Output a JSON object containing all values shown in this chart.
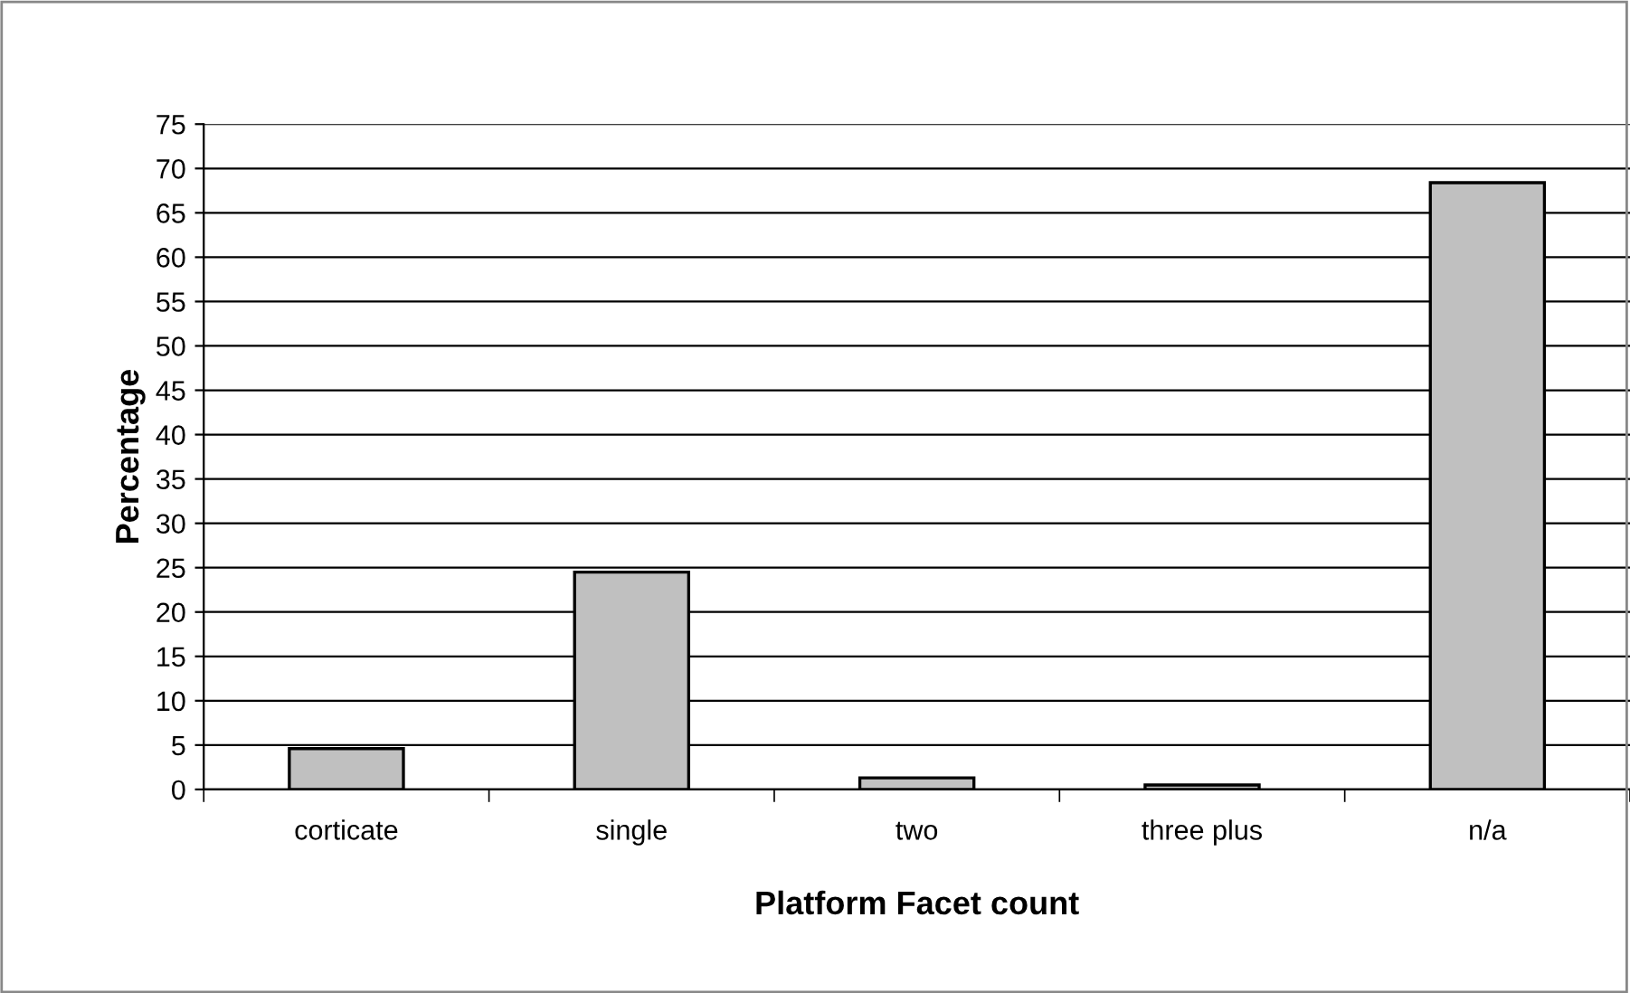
{
  "chart_data": {
    "type": "bar",
    "xlabel": "Platform Facet count",
    "ylabel": "Percentage",
    "categories": [
      "corticate",
      "single",
      "two",
      "three plus",
      "n/a"
    ],
    "values": [
      4.6,
      24.5,
      1.3,
      0.5,
      68.4
    ],
    "color": "#c0c0c0",
    "ylim": [
      0,
      75
    ],
    "yticks": [
      0,
      5,
      10,
      15,
      20,
      25,
      30,
      35,
      40,
      45,
      50,
      55,
      60,
      65,
      70,
      75
    ],
    "grid": "y",
    "legend": false
  }
}
